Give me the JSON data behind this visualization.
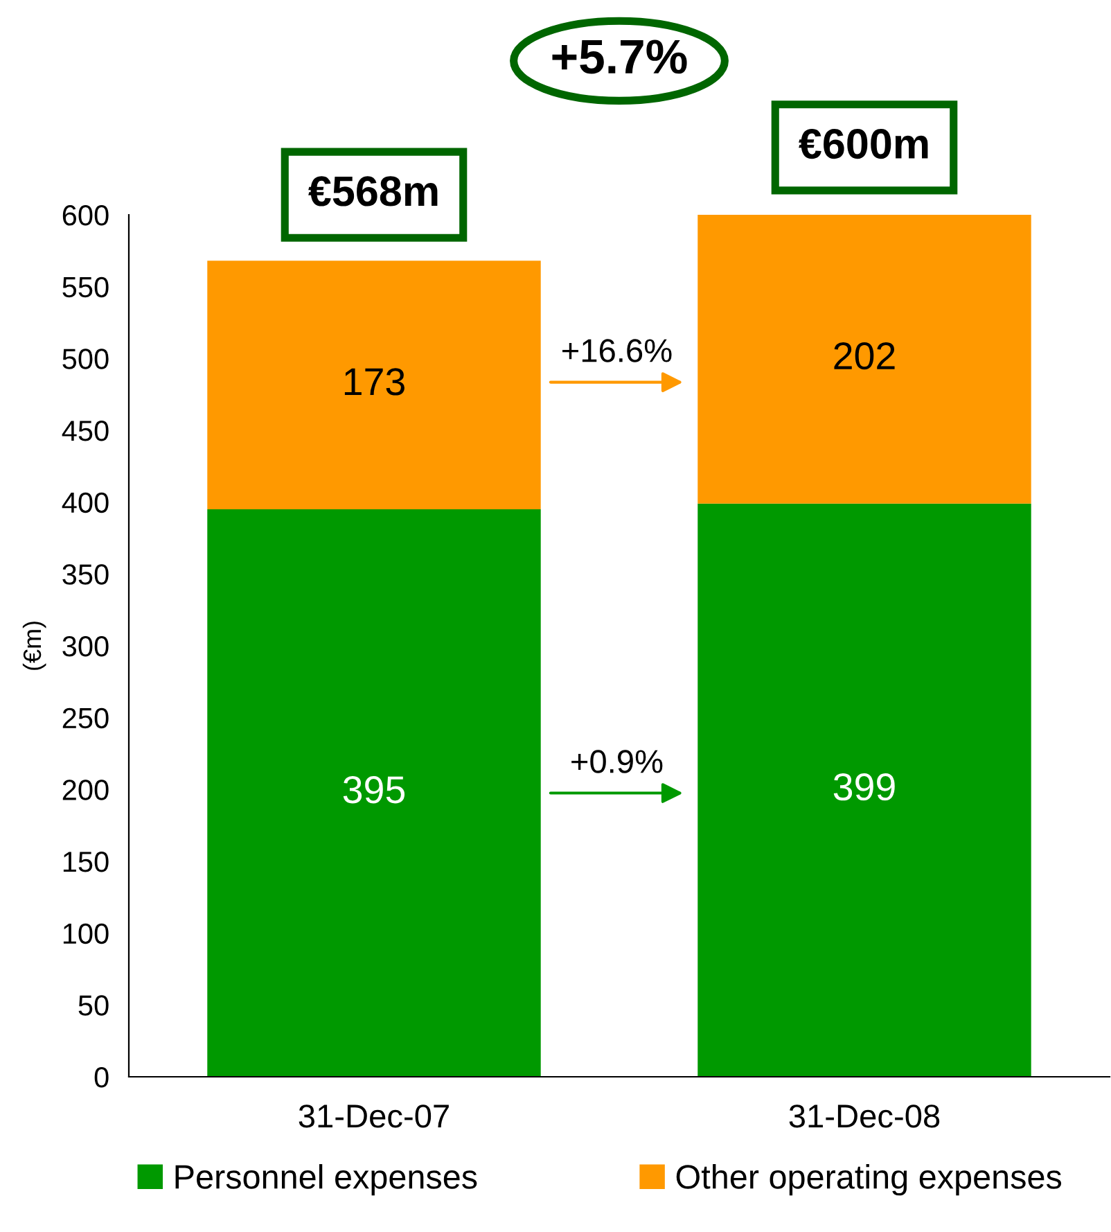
{
  "chart_data": {
    "type": "bar",
    "stacked": true,
    "categories": [
      "31-Dec-07",
      "31-Dec-08"
    ],
    "series": [
      {
        "name": "Personnel expenses",
        "color": "#009900",
        "values": [
          395,
          399
        ]
      },
      {
        "name": "Other operating expenses",
        "color": "#ff9900",
        "values": [
          173,
          202
        ]
      }
    ],
    "ylabel": "(€m)",
    "ylim": [
      0,
      600
    ],
    "yticks": [
      0,
      50,
      100,
      150,
      200,
      250,
      300,
      350,
      400,
      450,
      500,
      550,
      600
    ],
    "data_labels": true,
    "totals": [
      "€568m",
      "€600m"
    ],
    "annotations": [
      "+5.7%",
      "+16.6%",
      "+0.9%"
    ],
    "legend": "bottom"
  }
}
